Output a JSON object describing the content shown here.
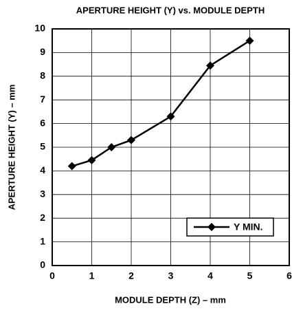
{
  "chart_data": {
    "type": "line",
    "title": "APERTURE HEIGHT (Y) vs. MODULE DEPTH",
    "x_label": "MODULE DEPTH (Z) – mm",
    "y_label": "APERTURE HEIGHT (Y) – mm",
    "x": [
      0.5,
      1,
      1.5,
      2,
      3,
      4,
      5
    ],
    "series": [
      {
        "name": "Y MIN.",
        "color": "#000000",
        "values": [
          4.2,
          4.45,
          5.0,
          5.3,
          6.3,
          8.45,
          9.5
        ]
      }
    ],
    "xlim": [
      0,
      6
    ],
    "ylim": [
      0,
      10
    ],
    "xticks": [
      0,
      1,
      2,
      3,
      4,
      5,
      6
    ],
    "yticks": [
      0,
      1,
      2,
      3,
      4,
      5,
      6,
      7,
      8,
      9,
      10
    ],
    "grid": true,
    "legend": "lower right"
  }
}
